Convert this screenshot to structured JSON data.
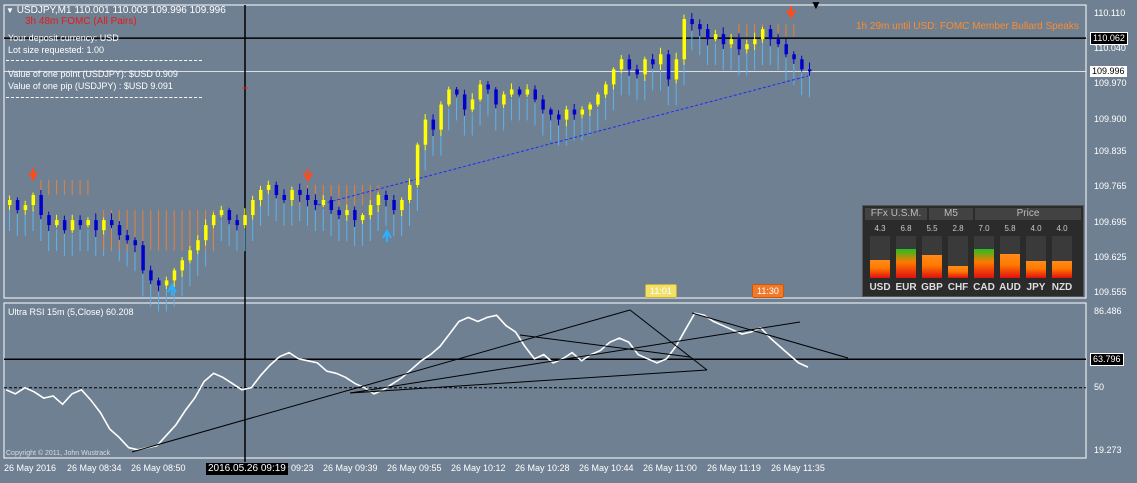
{
  "header": {
    "symbol_line": "USDJPY,M1  110.001 110.003 109.996 109.996",
    "event_countdown": "3h 48m  FOMC (All Pairs)",
    "event_ticker": "1h 29m until USD: FOMC Member Bullard Speaks"
  },
  "info_panel": {
    "deposit_currency": "Your deposit currency: USD",
    "lot_size": "Lot size requested: 1.00",
    "point_value": "Value of one point (USDJPY):  $USD 0.909",
    "pip_value": "Value of one pip    (USDJPY) : $USD 9.091"
  },
  "price_axis": {
    "ticks": [
      "110.110",
      "110.040",
      "109.970",
      "109.900",
      "109.835",
      "109.765",
      "109.695",
      "109.625",
      "109.555"
    ],
    "tick_values": [
      110.11,
      110.04,
      109.97,
      109.9,
      109.835,
      109.765,
      109.695,
      109.625,
      109.555
    ],
    "hline_label": "110.062",
    "hline_value": 110.062,
    "bid_label": "109.996",
    "bid_value": 109.996,
    "range": [
      109.545,
      110.128
    ]
  },
  "rsi": {
    "title": "Ultra RSI 15m (5,Close) 60.208",
    "ticks": [
      "86.486",
      "50",
      "19.273"
    ],
    "tick_values": [
      86.486,
      50,
      19.273
    ],
    "hline_label": "63.796",
    "hline_value": 63.796,
    "range": [
      17,
      90
    ]
  },
  "copyright": "Copyright © 2011, John Wustrack",
  "time_axis": {
    "labels": [
      "26 May 2016",
      "26 May 08:34",
      "26 May 08:50",
      "26 May 09:23",
      "26 May 09:39",
      "26 May 09:55",
      "26 May 10:12",
      "26 May 10:28",
      "26 May 10:44",
      "26 May 11:00",
      "26 May 11:19",
      "26 May 11:35"
    ],
    "crosshair_label": "2016.05.26 09:19"
  },
  "time_badges": {
    "first": "11:01",
    "second": "11:30"
  },
  "currency_monitor": {
    "headers": [
      "FFx U.S.M.",
      "M5",
      "Price"
    ],
    "values": [
      "4.3",
      "6.8",
      "5.5",
      "2.8",
      "7.0",
      "5.8",
      "4.0",
      "4.0"
    ],
    "currencies": [
      "USD",
      "EUR",
      "GBP",
      "CHF",
      "CAD",
      "AUD",
      "JPY",
      "NZD"
    ]
  },
  "colors": {
    "background": "#6f8093",
    "bull_candle": "#ffff00",
    "bear_candle": "#0000cc",
    "resistance_band": "#e8803a",
    "support_band": "#5ab4f0",
    "sell_arrow": "#ff4a1a",
    "buy_arrow": "#2ab0ff",
    "rsi_line": "#ffffff",
    "ticker_text": "#ff8c2a"
  },
  "chart_data": [
    {
      "type": "candlestick",
      "title": "USDJPY,M1",
      "close_path": [
        109.74,
        109.72,
        109.73,
        109.75,
        109.71,
        109.69,
        109.7,
        109.68,
        109.7,
        109.69,
        109.7,
        109.68,
        109.7,
        109.69,
        109.67,
        109.66,
        109.65,
        109.6,
        109.58,
        109.57,
        109.58,
        109.6,
        109.62,
        109.64,
        109.66,
        109.69,
        109.71,
        109.72,
        109.7,
        109.69,
        109.71,
        109.74,
        109.76,
        109.77,
        109.75,
        109.74,
        109.76,
        109.75,
        109.74,
        109.73,
        109.74,
        109.72,
        109.71,
        109.72,
        109.7,
        109.71,
        109.73,
        109.75,
        109.74,
        109.72,
        109.74,
        109.77,
        109.85,
        109.9,
        109.88,
        109.93,
        109.96,
        109.95,
        109.92,
        109.94,
        109.97,
        109.96,
        109.93,
        109.95,
        109.96,
        109.95,
        109.96,
        109.94,
        109.92,
        109.91,
        109.9,
        109.92,
        109.91,
        109.92,
        109.93,
        109.95,
        109.97,
        110.0,
        110.02,
        110.0,
        109.99,
        110.02,
        110.01,
        110.03,
        109.98,
        110.02,
        110.1,
        110.09,
        110.08,
        110.06,
        110.07,
        110.05,
        110.06,
        110.04,
        110.05,
        110.06,
        110.08,
        110.06,
        110.05,
        110.03,
        110.02,
        110.0,
        109.996
      ],
      "x_start": "26 May 2016 08:18",
      "x_end": "26 May 11:38",
      "sell_arrows": [
        "26 May 08:19",
        "26 May 09:22",
        "26 May 11:23"
      ],
      "buy_arrows": [
        "26 May 08:50",
        "26 May 09:44"
      ]
    },
    {
      "type": "line",
      "title": "Ultra RSI 15m (5,Close)",
      "values": [
        49,
        47,
        50,
        48,
        45,
        46,
        42,
        47,
        49,
        44,
        38,
        30,
        26,
        21,
        20,
        21,
        22,
        27,
        32,
        39,
        45,
        53,
        57,
        55,
        52,
        49,
        50,
        56,
        61,
        65,
        67,
        64,
        63,
        62,
        58,
        57,
        55,
        52,
        50,
        47,
        49,
        52,
        55,
        59,
        63,
        66,
        70,
        76,
        82,
        84,
        82,
        84,
        85,
        80,
        77,
        70,
        64,
        66,
        62,
        64,
        67,
        63,
        66,
        68,
        72,
        74,
        72,
        66,
        64,
        62,
        64,
        70,
        78,
        86,
        85,
        82,
        80,
        78,
        76,
        77,
        79,
        74,
        70,
        66,
        62,
        60
      ],
      "last_value": 60.208,
      "ylim": [
        19.273,
        86.486
      ]
    }
  ]
}
